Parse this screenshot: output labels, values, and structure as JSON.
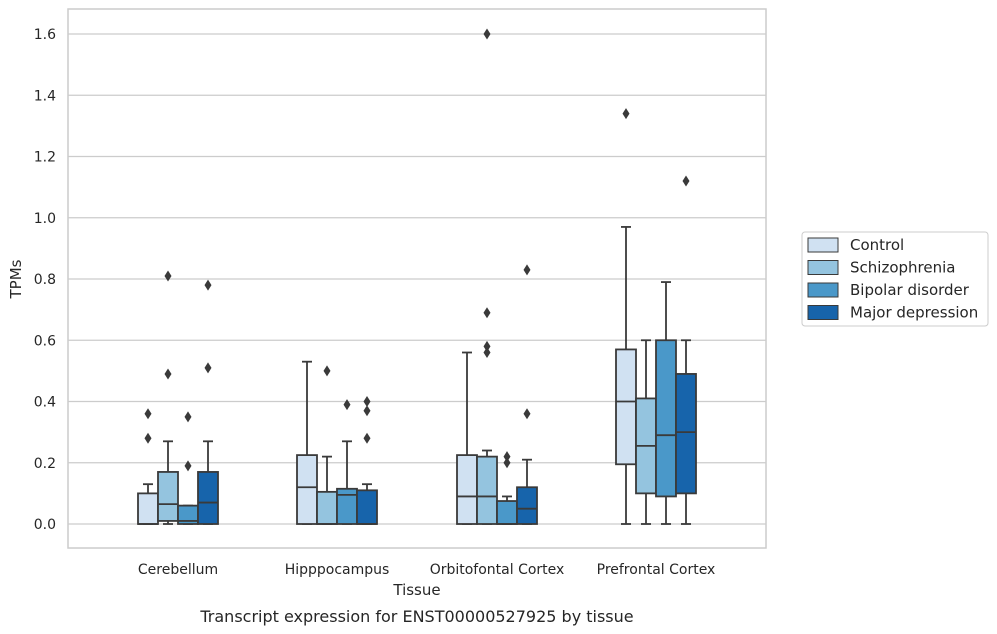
{
  "chart_data": {
    "type": "box",
    "title": "",
    "caption": "Transcript expression for ENST00000527925 by tissue",
    "xlabel": "Tissue",
    "ylabel": "TPMs",
    "ylim": [
      -0.08,
      1.68
    ],
    "yticks": [
      "0.0",
      "0.2",
      "0.4",
      "0.6",
      "0.8",
      "1.0",
      "1.2",
      "1.4",
      "1.6"
    ],
    "grid": "horizontal",
    "legend_position": "right",
    "categories": [
      "Cerebellum",
      "Hipppocampus",
      "Orbitofontal Cortex",
      "Prefrontal Cortex"
    ],
    "series": [
      {
        "name": "Control",
        "color": "#d0e1f2",
        "boxes": [
          {
            "whislo": 0.0,
            "q1": 0.0,
            "med": 0.0,
            "q3": 0.1,
            "whishi": 0.13,
            "fliers": [
              0.28,
              0.36
            ]
          },
          {
            "whislo": 0.0,
            "q1": 0.0,
            "med": 0.12,
            "q3": 0.225,
            "whishi": 0.53,
            "fliers": []
          },
          {
            "whislo": 0.0,
            "q1": 0.0,
            "med": 0.09,
            "q3": 0.225,
            "whishi": 0.56,
            "fliers": []
          },
          {
            "whislo": 0.0,
            "q1": 0.195,
            "med": 0.4,
            "q3": 0.57,
            "whishi": 0.97,
            "fliers": [
              1.34
            ]
          }
        ]
      },
      {
        "name": "Schizophrenia",
        "color": "#94c4df",
        "boxes": [
          {
            "whislo": 0.0,
            "q1": 0.01,
            "med": 0.065,
            "q3": 0.17,
            "whishi": 0.27,
            "fliers": [
              0.49,
              0.81
            ]
          },
          {
            "whislo": 0.0,
            "q1": 0.0,
            "med": 0.0,
            "q3": 0.105,
            "whishi": 0.22,
            "fliers": [
              0.5
            ]
          },
          {
            "whislo": 0.0,
            "q1": 0.0,
            "med": 0.09,
            "q3": 0.22,
            "whishi": 0.24,
            "fliers": [
              0.56,
              0.58,
              0.69,
              1.6
            ]
          },
          {
            "whislo": 0.0,
            "q1": 0.1,
            "med": 0.255,
            "q3": 0.41,
            "whishi": 0.6,
            "fliers": []
          }
        ]
      },
      {
        "name": "Bipolar disorder",
        "color": "#4a98c9",
        "boxes": [
          {
            "whislo": 0.0,
            "q1": 0.0,
            "med": 0.01,
            "q3": 0.06,
            "whishi": 0.06,
            "fliers": [
              0.19,
              0.35
            ]
          },
          {
            "whislo": 0.0,
            "q1": 0.0,
            "med": 0.095,
            "q3": 0.115,
            "whishi": 0.27,
            "fliers": [
              0.39
            ]
          },
          {
            "whislo": 0.0,
            "q1": 0.0,
            "med": 0.0,
            "q3": 0.075,
            "whishi": 0.09,
            "fliers": [
              0.2,
              0.22
            ]
          },
          {
            "whislo": 0.0,
            "q1": 0.09,
            "med": 0.29,
            "q3": 0.6,
            "whishi": 0.79,
            "fliers": []
          }
        ]
      },
      {
        "name": "Major depression",
        "color": "#1764ab",
        "boxes": [
          {
            "whislo": 0.0,
            "q1": 0.0,
            "med": 0.07,
            "q3": 0.17,
            "whishi": 0.27,
            "fliers": [
              0.51,
              0.78
            ]
          },
          {
            "whislo": 0.0,
            "q1": 0.0,
            "med": 0.0,
            "q3": 0.11,
            "whishi": 0.13,
            "fliers": [
              0.28,
              0.37,
              0.4
            ]
          },
          {
            "whislo": 0.0,
            "q1": 0.0,
            "med": 0.05,
            "q3": 0.12,
            "whishi": 0.21,
            "fliers": [
              0.36,
              0.83
            ]
          },
          {
            "whislo": 0.0,
            "q1": 0.1,
            "med": 0.3,
            "q3": 0.49,
            "whishi": 0.6,
            "fliers": [
              1.12
            ]
          }
        ]
      }
    ]
  }
}
